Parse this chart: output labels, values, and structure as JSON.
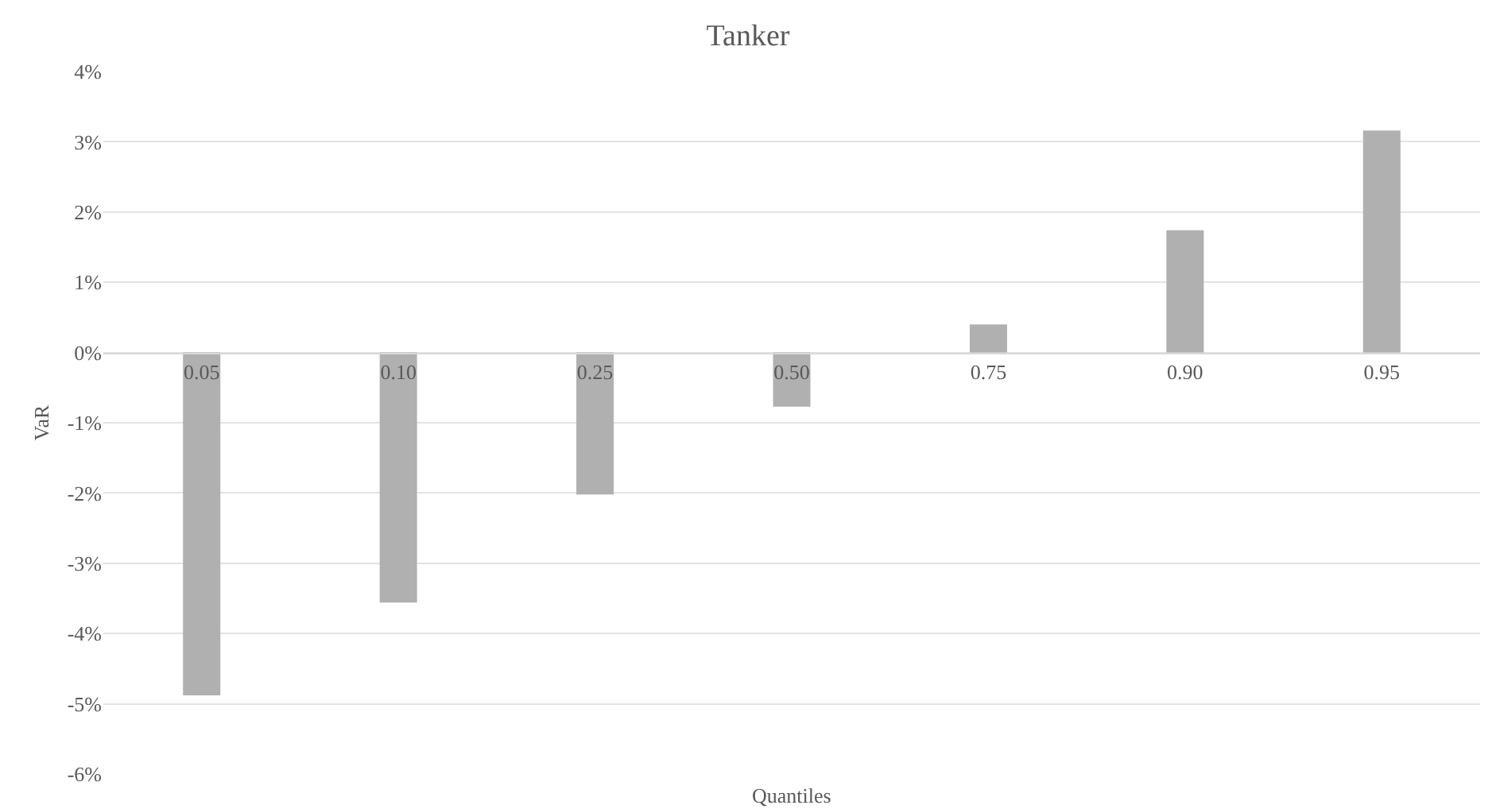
{
  "chart_data": {
    "type": "bar",
    "title": "Tanker",
    "xlabel": "Quantiles",
    "ylabel": "VaR",
    "categories": [
      "0.05",
      "0.10",
      "0.25",
      "0.50",
      "0.75",
      "0.90",
      "0.95"
    ],
    "values": [
      -4.88,
      -3.56,
      -2.02,
      -0.77,
      0.4,
      1.74,
      3.16
    ],
    "color": "#b0b0b0",
    "ylim": [
      -6,
      4
    ],
    "yticks": [
      {
        "value": -6,
        "label": "-6%"
      },
      {
        "value": -5,
        "label": "-5%"
      },
      {
        "value": -4,
        "label": "-4%"
      },
      {
        "value": -3,
        "label": "-3%"
      },
      {
        "value": -2,
        "label": "-2%"
      },
      {
        "value": -1,
        "label": "-1%"
      },
      {
        "value": 0,
        "label": "0%"
      },
      {
        "value": 1,
        "label": "1%"
      },
      {
        "value": 2,
        "label": "2%"
      },
      {
        "value": 3,
        "label": "3%"
      },
      {
        "value": 4,
        "label": "4%"
      }
    ],
    "grid": "y"
  }
}
